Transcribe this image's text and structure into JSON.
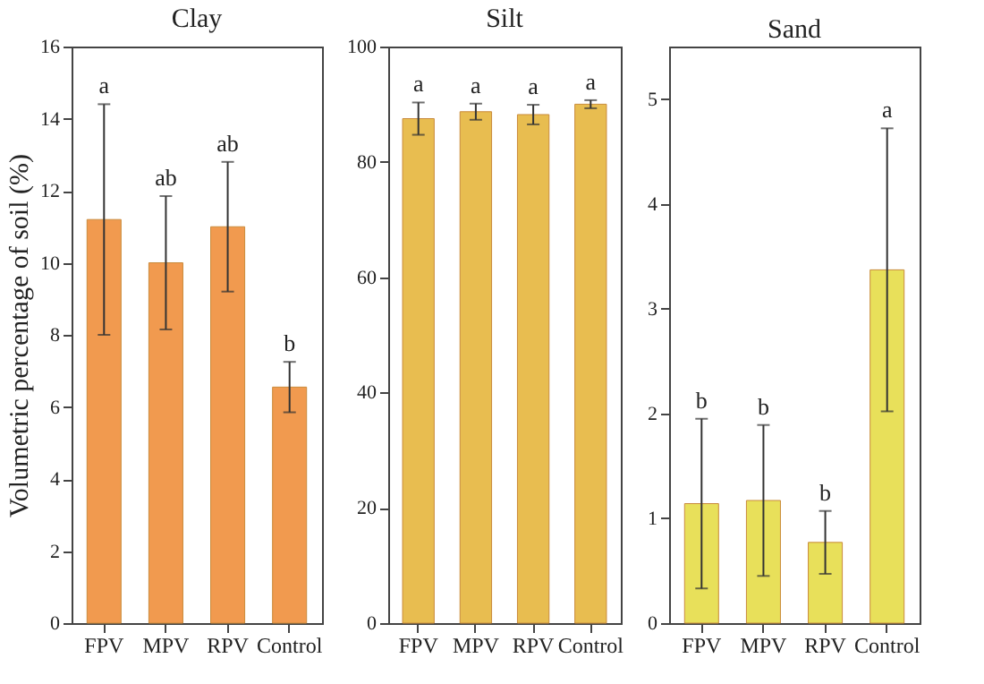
{
  "chart_data": [
    {
      "type": "bar",
      "title": "Clay",
      "ylabel": "Volumetric percentage of soil (%)",
      "categories": [
        "FPV",
        "MPV",
        "RPV",
        "Control"
      ],
      "values": [
        11.2,
        10.0,
        11.0,
        6.55
      ],
      "errors": [
        3.2,
        1.85,
        1.8,
        0.7
      ],
      "color": "#f19a4f",
      "ylim": [
        0,
        16
      ],
      "yticks": [
        0,
        2,
        4,
        6,
        8,
        10,
        12,
        14,
        16
      ],
      "grid": false,
      "annotations": [
        {
          "text": "a",
          "x": "FPV",
          "y": 14.4
        },
        {
          "text": "ab",
          "x": "MPV",
          "y": 11.85
        },
        {
          "text": "ab",
          "x": "RPV",
          "y": 12.8
        },
        {
          "text": "b",
          "x": "Control",
          "y": 7.25
        }
      ]
    },
    {
      "type": "bar",
      "title": "Silt",
      "categories": [
        "FPV",
        "MPV",
        "RPV",
        "Control"
      ],
      "values": [
        87.5,
        88.7,
        88.2,
        90.0
      ],
      "errors": [
        2.8,
        1.4,
        1.7,
        0.7
      ],
      "color": "#e8bd50",
      "ylim": [
        0,
        100
      ],
      "yticks": [
        0,
        20,
        40,
        60,
        80,
        100
      ],
      "grid": false,
      "annotations": [
        {
          "text": "a",
          "x": "FPV",
          "y": 90.3
        },
        {
          "text": "a",
          "x": "MPV",
          "y": 90.1
        },
        {
          "text": "a",
          "x": "RPV",
          "y": 89.9
        },
        {
          "text": "a",
          "x": "Control",
          "y": 90.7
        }
      ]
    },
    {
      "type": "bar",
      "title": "Sand",
      "categories": [
        "FPV",
        "MPV",
        "RPV",
        "Control"
      ],
      "values": [
        1.14,
        1.17,
        0.77,
        3.37
      ],
      "errors": [
        0.81,
        0.72,
        0.3,
        1.35
      ],
      "color": "#e8e05a",
      "ylim": [
        0,
        5.5
      ],
      "yticks": [
        0,
        1,
        2,
        3,
        4,
        5
      ],
      "grid": false,
      "annotations": [
        {
          "text": "b",
          "x": "FPV",
          "y": 1.95
        },
        {
          "text": "b",
          "x": "MPV",
          "y": 1.89
        },
        {
          "text": "b",
          "x": "RPV",
          "y": 1.07
        },
        {
          "text": "a",
          "x": "Control",
          "y": 4.72
        }
      ]
    }
  ]
}
